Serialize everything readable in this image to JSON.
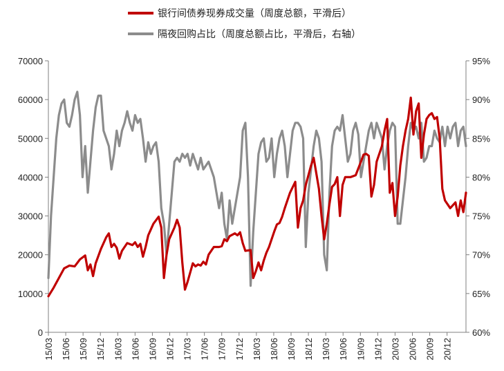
{
  "chart_data": {
    "type": "line",
    "legend": {
      "position": "top-center"
    },
    "grid": false,
    "series": [
      {
        "name": "银行间债券现券成交量（周度总额，平滑后）",
        "axis": "left",
        "color": "#c00000",
        "points": [
          [
            0,
            9300
          ],
          [
            2,
            11500
          ],
          [
            4,
            14000
          ],
          [
            6,
            16500
          ],
          [
            8,
            17200
          ],
          [
            10,
            17000
          ],
          [
            12,
            18800
          ],
          [
            14,
            19800
          ],
          [
            15,
            16000
          ],
          [
            16,
            17500
          ],
          [
            17,
            14500
          ],
          [
            18,
            17800
          ],
          [
            20,
            21500
          ],
          [
            22,
            24500
          ],
          [
            23,
            25500
          ],
          [
            24,
            22000
          ],
          [
            25,
            22800
          ],
          [
            26,
            21800
          ],
          [
            27,
            19000
          ],
          [
            28,
            21000
          ],
          [
            30,
            23000
          ],
          [
            32,
            22500
          ],
          [
            33,
            23200
          ],
          [
            34,
            22000
          ],
          [
            35,
            22800
          ],
          [
            36,
            19500
          ],
          [
            37,
            22000
          ],
          [
            38,
            25000
          ],
          [
            40,
            28000
          ],
          [
            42,
            29800
          ],
          [
            43,
            27000
          ],
          [
            44,
            14000
          ],
          [
            45,
            20000
          ],
          [
            46,
            24000
          ],
          [
            48,
            27000
          ],
          [
            49,
            29000
          ],
          [
            50,
            27000
          ],
          [
            51,
            18000
          ],
          [
            52,
            11000
          ],
          [
            53,
            13000
          ],
          [
            55,
            17800
          ],
          [
            56,
            17000
          ],
          [
            57,
            17500
          ],
          [
            58,
            17200
          ],
          [
            59,
            18200
          ],
          [
            60,
            17500
          ],
          [
            61,
            20000
          ],
          [
            63,
            22000
          ],
          [
            65,
            22000
          ],
          [
            66,
            22200
          ],
          [
            67,
            24000
          ],
          [
            68,
            23500
          ],
          [
            69,
            24800
          ],
          [
            71,
            25500
          ],
          [
            72,
            25000
          ],
          [
            73,
            25800
          ],
          [
            74,
            23000
          ],
          [
            75,
            21000
          ],
          [
            77,
            21200
          ],
          [
            78,
            14000
          ],
          [
            79,
            15800
          ],
          [
            80,
            18000
          ],
          [
            81,
            16000
          ],
          [
            82,
            18500
          ],
          [
            83,
            20500
          ],
          [
            84,
            22000
          ],
          [
            86,
            26000
          ],
          [
            87,
            27800
          ],
          [
            88,
            28200
          ],
          [
            89,
            29800
          ],
          [
            90,
            32000
          ],
          [
            92,
            36000
          ],
          [
            94,
            38800
          ],
          [
            95,
            27000
          ],
          [
            96,
            32000
          ],
          [
            97,
            34000
          ],
          [
            98,
            38000
          ],
          [
            100,
            43000
          ],
          [
            101,
            45000
          ],
          [
            102,
            41000
          ],
          [
            103,
            37000
          ],
          [
            104,
            30000
          ],
          [
            105,
            24000
          ],
          [
            106,
            28000
          ],
          [
            107,
            33000
          ],
          [
            108,
            37500
          ],
          [
            109,
            38200
          ],
          [
            110,
            40000
          ],
          [
            111,
            30000
          ],
          [
            112,
            38000
          ],
          [
            113,
            40000
          ],
          [
            115,
            40000
          ],
          [
            117,
            40500
          ],
          [
            119,
            44000
          ],
          [
            120,
            45800
          ],
          [
            121,
            46000
          ],
          [
            122,
            45500
          ],
          [
            123,
            35000
          ],
          [
            124,
            38000
          ],
          [
            125,
            44000
          ],
          [
            127,
            48000
          ],
          [
            128,
            52000
          ],
          [
            129,
            55000
          ],
          [
            130,
            36000
          ],
          [
            131,
            38500
          ],
          [
            132,
            30000
          ],
          [
            133,
            35000
          ],
          [
            134,
            43000
          ],
          [
            135,
            48000
          ],
          [
            136,
            52000
          ],
          [
            137,
            55000
          ],
          [
            138,
            60500
          ],
          [
            139,
            51000
          ],
          [
            140,
            57000
          ],
          [
            141,
            59000
          ],
          [
            142,
            45000
          ],
          [
            143,
            51000
          ],
          [
            144,
            55000
          ],
          [
            145,
            56000
          ],
          [
            146,
            56500
          ],
          [
            147,
            55000
          ],
          [
            148,
            55500
          ],
          [
            149,
            50000
          ],
          [
            150,
            37000
          ],
          [
            151,
            34000
          ],
          [
            152,
            33000
          ],
          [
            153,
            32000
          ],
          [
            155,
            33500
          ],
          [
            156,
            30000
          ],
          [
            157,
            34000
          ],
          [
            158,
            31000
          ],
          [
            159,
            36000
          ]
        ]
      },
      {
        "name": "隔夜回购占比（周度总额占比，平滑后，右轴）",
        "axis": "right",
        "color": "#8c8c8c",
        "points": [
          [
            0,
            67
          ],
          [
            1,
            75
          ],
          [
            2,
            80
          ],
          [
            3,
            85
          ],
          [
            4,
            88
          ],
          [
            5,
            89.5
          ],
          [
            6,
            90
          ],
          [
            7,
            87
          ],
          [
            8,
            86.5
          ],
          [
            9,
            88
          ],
          [
            10,
            90
          ],
          [
            11,
            91
          ],
          [
            12,
            88
          ],
          [
            13,
            80
          ],
          [
            14,
            84
          ],
          [
            15,
            78
          ],
          [
            16,
            82
          ],
          [
            17,
            86
          ],
          [
            18,
            89
          ],
          [
            19,
            90.5
          ],
          [
            20,
            90.5
          ],
          [
            21,
            86
          ],
          [
            22,
            85
          ],
          [
            23,
            84
          ],
          [
            24,
            81
          ],
          [
            25,
            83
          ],
          [
            26,
            86
          ],
          [
            27,
            84
          ],
          [
            28,
            86
          ],
          [
            29,
            87
          ],
          [
            30,
            88.5
          ],
          [
            31,
            87
          ],
          [
            32,
            86
          ],
          [
            33,
            88
          ],
          [
            34,
            87
          ],
          [
            35,
            87.5
          ],
          [
            36,
            85
          ],
          [
            37,
            82
          ],
          [
            38,
            84.5
          ],
          [
            39,
            83
          ],
          [
            40,
            84
          ],
          [
            41,
            84.5
          ],
          [
            42,
            82
          ],
          [
            43,
            76
          ],
          [
            44,
            74
          ],
          [
            45,
            70
          ],
          [
            46,
            74
          ],
          [
            47,
            78
          ],
          [
            48,
            82
          ],
          [
            49,
            82.5
          ],
          [
            50,
            82
          ],
          [
            51,
            83
          ],
          [
            52,
            82.5
          ],
          [
            53,
            83
          ],
          [
            54,
            81.5
          ],
          [
            55,
            83
          ],
          [
            56,
            82
          ],
          [
            57,
            81
          ],
          [
            58,
            82.5
          ],
          [
            59,
            81
          ],
          [
            60,
            81.5
          ],
          [
            61,
            82
          ],
          [
            62,
            81
          ],
          [
            63,
            80
          ],
          [
            64,
            78
          ],
          [
            65,
            76
          ],
          [
            66,
            78
          ],
          [
            67,
            74
          ],
          [
            68,
            72
          ],
          [
            69,
            77
          ],
          [
            70,
            74
          ],
          [
            71,
            76
          ],
          [
            72,
            78
          ],
          [
            73,
            80
          ],
          [
            74,
            86
          ],
          [
            75,
            87
          ],
          [
            76,
            80
          ],
          [
            77,
            66
          ],
          [
            78,
            73
          ],
          [
            79,
            78
          ],
          [
            80,
            83
          ],
          [
            81,
            84.5
          ],
          [
            82,
            85
          ],
          [
            83,
            82
          ],
          [
            84,
            82.5
          ],
          [
            85,
            85
          ],
          [
            86,
            80
          ],
          [
            87,
            83
          ],
          [
            88,
            85
          ],
          [
            89,
            86
          ],
          [
            90,
            84
          ],
          [
            91,
            80
          ],
          [
            92,
            83
          ],
          [
            93,
            86
          ],
          [
            94,
            87
          ],
          [
            95,
            87
          ],
          [
            96,
            86.5
          ],
          [
            97,
            85
          ],
          [
            98,
            71
          ],
          [
            99,
            78
          ],
          [
            100,
            81
          ],
          [
            101,
            84
          ],
          [
            102,
            86
          ],
          [
            103,
            85
          ],
          [
            104,
            82
          ],
          [
            105,
            70
          ],
          [
            106,
            68
          ],
          [
            107,
            78
          ],
          [
            108,
            84
          ],
          [
            109,
            86
          ],
          [
            110,
            86.5
          ],
          [
            111,
            86
          ],
          [
            112,
            88
          ],
          [
            113,
            85
          ],
          [
            114,
            82
          ],
          [
            115,
            83
          ],
          [
            116,
            86
          ],
          [
            117,
            87
          ],
          [
            118,
            85.5
          ],
          [
            119,
            80
          ],
          [
            120,
            82
          ],
          [
            121,
            84
          ],
          [
            122,
            86
          ],
          [
            123,
            87
          ],
          [
            124,
            85
          ],
          [
            125,
            87
          ],
          [
            126,
            86
          ],
          [
            127,
            85
          ],
          [
            128,
            81
          ],
          [
            129,
            84
          ],
          [
            130,
            86
          ],
          [
            131,
            87
          ],
          [
            132,
            86.5
          ],
          [
            133,
            74
          ],
          [
            134,
            74
          ],
          [
            135,
            77
          ],
          [
            136,
            80
          ],
          [
            137,
            84
          ],
          [
            138,
            87
          ],
          [
            139,
            86
          ],
          [
            140,
            86.5
          ],
          [
            141,
            85
          ],
          [
            142,
            87
          ],
          [
            143,
            82
          ],
          [
            144,
            82.5
          ],
          [
            145,
            84
          ],
          [
            146,
            84
          ],
          [
            147,
            86
          ],
          [
            148,
            85
          ],
          [
            149,
            84.5
          ],
          [
            150,
            86.5
          ],
          [
            151,
            84
          ],
          [
            152,
            86.5
          ],
          [
            153,
            85
          ],
          [
            154,
            86.5
          ],
          [
            155,
            87
          ],
          [
            156,
            84
          ],
          [
            157,
            86
          ],
          [
            158,
            86.5
          ],
          [
            159,
            84
          ]
        ]
      }
    ],
    "x_axis": {
      "ticks": [
        {
          "x": 0,
          "label": "15/03"
        },
        {
          "x": 6.6,
          "label": "15/06"
        },
        {
          "x": 13.2,
          "label": "15/09"
        },
        {
          "x": 19.8,
          "label": "15/12"
        },
        {
          "x": 26.4,
          "label": "16/03"
        },
        {
          "x": 33,
          "label": "16/06"
        },
        {
          "x": 39.6,
          "label": "16/09"
        },
        {
          "x": 46.2,
          "label": "16/12"
        },
        {
          "x": 52.8,
          "label": "17/03"
        },
        {
          "x": 59.4,
          "label": "17/06"
        },
        {
          "x": 66,
          "label": "17/09"
        },
        {
          "x": 72.6,
          "label": "17/12"
        },
        {
          "x": 79.2,
          "label": "18/03"
        },
        {
          "x": 85.8,
          "label": "18/06"
        },
        {
          "x": 92.4,
          "label": "18/09"
        },
        {
          "x": 99,
          "label": "18/12"
        },
        {
          "x": 105.6,
          "label": "19/03"
        },
        {
          "x": 112.2,
          "label": "19/06"
        },
        {
          "x": 118.8,
          "label": "19/09"
        },
        {
          "x": 125.4,
          "label": "19/12"
        },
        {
          "x": 132,
          "label": "20/03"
        },
        {
          "x": 138.6,
          "label": "20/06"
        },
        {
          "x": 145.2,
          "label": "20/09"
        },
        {
          "x": 151.8,
          "label": "20/12"
        }
      ],
      "range": [
        0,
        159
      ]
    },
    "y_left": {
      "range": [
        0,
        70000
      ],
      "ticks": [
        0,
        10000,
        20000,
        30000,
        40000,
        50000,
        60000,
        70000
      ]
    },
    "y_right": {
      "range": [
        60,
        95
      ],
      "ticks": [
        60,
        65,
        70,
        75,
        80,
        85,
        90,
        95
      ],
      "unit": "%"
    }
  }
}
